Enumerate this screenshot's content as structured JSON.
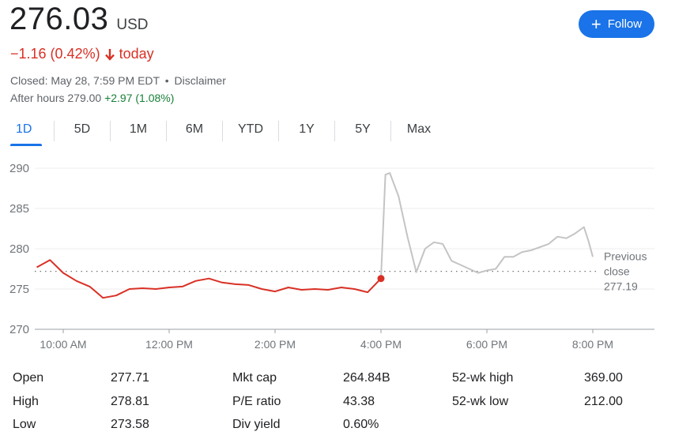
{
  "quote": {
    "price": "276.03",
    "currency": "USD",
    "change": "−1.16 (0.42%)",
    "change_suffix": "today",
    "closed_text": "Closed: May 28, 7:59 PM EDT",
    "separator": "•",
    "disclaimer": "Disclaimer",
    "after_hours_label": "After hours 279.00",
    "after_hours_change": "+2.97 (1.08%)"
  },
  "follow_button": {
    "label": "Follow",
    "icon": "plus-icon"
  },
  "tabs": [
    "1D",
    "5D",
    "1M",
    "6M",
    "YTD",
    "1Y",
    "5Y",
    "Max"
  ],
  "active_tab": "1D",
  "colors": {
    "regular": "#d93025",
    "after_hours": "#c4c4c4",
    "accent": "#1a73e8"
  },
  "chart_data": {
    "type": "line",
    "ylim": [
      270,
      290
    ],
    "y_ticks": [
      "290",
      "285",
      "280",
      "275",
      "270"
    ],
    "x_ticks": [
      "10:00 AM",
      "12:00 PM",
      "2:00 PM",
      "4:00 PM",
      "6:00 PM",
      "8:00 PM"
    ],
    "previous_close": {
      "label_line1": "Previous",
      "label_line2": "close",
      "value_text": "277.19",
      "value": 277.19
    },
    "series": [
      {
        "session": "regular",
        "x": [
          "9:30",
          "9:45",
          "10:00",
          "10:15",
          "10:30",
          "10:45",
          "11:00",
          "11:15",
          "11:30",
          "11:45",
          "12:00",
          "12:15",
          "12:30",
          "12:45",
          "13:00",
          "13:15",
          "13:30",
          "13:45",
          "14:00",
          "14:15",
          "14:30",
          "14:45",
          "15:00",
          "15:15",
          "15:30",
          "15:45",
          "16:00"
        ],
        "values": [
          277.7,
          278.6,
          277.0,
          276.0,
          275.3,
          273.9,
          274.2,
          275.0,
          275.1,
          275.0,
          275.2,
          275.3,
          276.0,
          276.3,
          275.8,
          275.6,
          275.5,
          275.0,
          274.7,
          275.2,
          274.9,
          275.0,
          274.9,
          275.2,
          275.0,
          274.6,
          276.3
        ]
      },
      {
        "session": "after_hours",
        "x": [
          "16:00",
          "16:05",
          "16:10",
          "16:20",
          "16:30",
          "16:40",
          "16:50",
          "17:00",
          "17:10",
          "17:20",
          "17:30",
          "17:40",
          "17:50",
          "18:00",
          "18:10",
          "18:20",
          "18:30",
          "18:40",
          "18:50",
          "19:00",
          "19:10",
          "19:20",
          "19:30",
          "19:40",
          "19:50",
          "19:55",
          "20:00"
        ],
        "values": [
          276.3,
          289.2,
          289.4,
          286.5,
          281.5,
          277.1,
          280.0,
          280.8,
          280.6,
          278.5,
          278.0,
          277.5,
          277.0,
          277.3,
          277.5,
          279.0,
          279.0,
          279.6,
          279.8,
          280.2,
          280.6,
          281.5,
          281.3,
          281.9,
          282.7,
          281.0,
          279.0
        ]
      }
    ]
  },
  "stats": [
    {
      "label": "Open",
      "value": "277.71"
    },
    {
      "label": "High",
      "value": "278.81"
    },
    {
      "label": "Low",
      "value": "273.58"
    },
    {
      "label": "Mkt cap",
      "value": "264.84B"
    },
    {
      "label": "P/E ratio",
      "value": "43.38"
    },
    {
      "label": "Div yield",
      "value": "0.60%"
    },
    {
      "label": "52-wk high",
      "value": "369.00"
    },
    {
      "label": "52-wk low",
      "value": "212.00"
    }
  ]
}
